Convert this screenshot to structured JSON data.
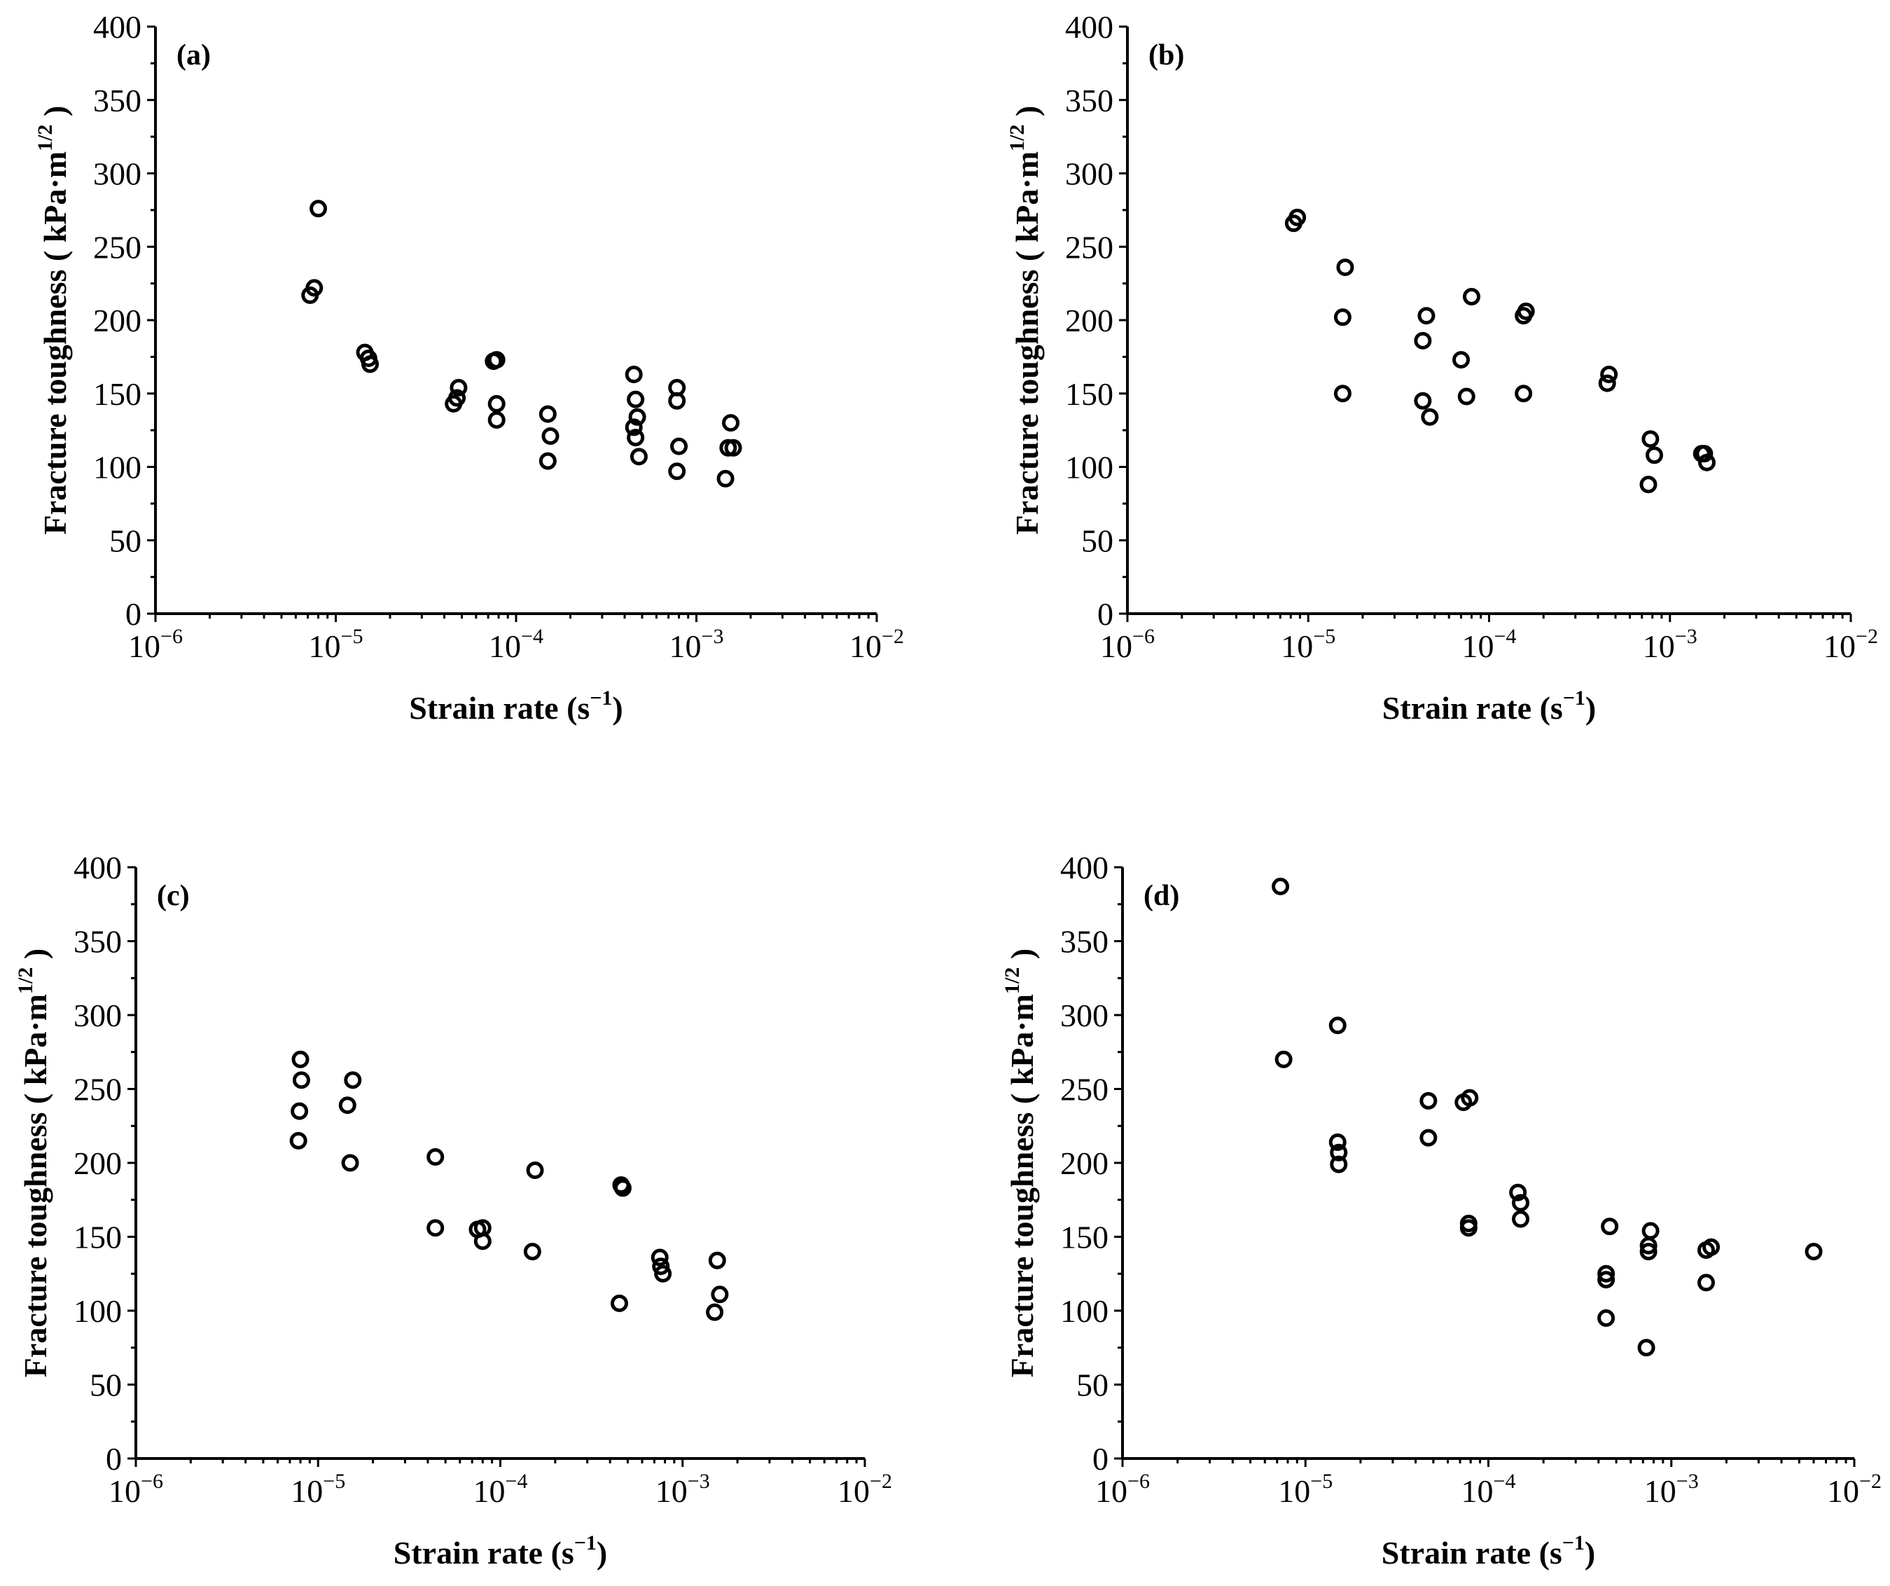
{
  "chart_data": [
    {
      "type": "scatter",
      "panel_label": "(a)",
      "xlabel": "Strain rate (s",
      "xlabel_exp": "−1",
      "xlabel_close": ")",
      "ylabel": "Fracture toughness ( kPa·m",
      "ylabel_exp": "1/2",
      "ylabel_close": " )",
      "x_scale": "log",
      "xlim": [
        1e-06,
        0.01
      ],
      "ylim": [
        0,
        400
      ],
      "x_ticks": [
        {
          "base": "10",
          "exp": "−6"
        },
        {
          "base": "10",
          "exp": "−5"
        },
        {
          "base": "10",
          "exp": "−4"
        },
        {
          "base": "10",
          "exp": "−3"
        },
        {
          "base": "10",
          "exp": "−2"
        }
      ],
      "y_ticks": [
        "0",
        "50",
        "100",
        "150",
        "200",
        "250",
        "300",
        "350",
        "400"
      ],
      "points": [
        [
          7.2e-06,
          217
        ],
        [
          7.6e-06,
          222
        ],
        [
          8e-06,
          276
        ],
        [
          1.45e-05,
          178
        ],
        [
          1.52e-05,
          174
        ],
        [
          1.55e-05,
          170
        ],
        [
          4.5e-05,
          143
        ],
        [
          4.7e-05,
          147
        ],
        [
          4.8e-05,
          154
        ],
        [
          7.5e-05,
          172
        ],
        [
          7.8e-05,
          173
        ],
        [
          7.8e-05,
          132
        ],
        [
          7.8e-05,
          143
        ],
        [
          0.00015,
          136
        ],
        [
          0.000155,
          121
        ],
        [
          0.00015,
          104
        ],
        [
          0.00045,
          163
        ],
        [
          0.00046,
          146
        ],
        [
          0.00047,
          134
        ],
        [
          0.00045,
          127
        ],
        [
          0.00046,
          120
        ],
        [
          0.00048,
          107
        ],
        [
          0.00078,
          154
        ],
        [
          0.00078,
          145
        ],
        [
          0.0008,
          114
        ],
        [
          0.00078,
          97
        ],
        [
          0.00155,
          130
        ],
        [
          0.0015,
          113
        ],
        [
          0.0016,
          113
        ],
        [
          0.00145,
          92
        ]
      ]
    },
    {
      "type": "scatter",
      "panel_label": "(b)",
      "xlabel": "Strain rate (s",
      "xlabel_exp": "−1",
      "xlabel_close": ")",
      "ylabel": "Fracture toughness ( kPa·m",
      "ylabel_exp": "1/2",
      "ylabel_close": " )",
      "x_scale": "log",
      "xlim": [
        1e-06,
        0.01
      ],
      "ylim": [
        0,
        400
      ],
      "x_ticks": [
        {
          "base": "10",
          "exp": "−6"
        },
        {
          "base": "10",
          "exp": "−5"
        },
        {
          "base": "10",
          "exp": "−4"
        },
        {
          "base": "10",
          "exp": "−3"
        },
        {
          "base": "10",
          "exp": "−2"
        }
      ],
      "y_ticks": [
        "0",
        "50",
        "100",
        "150",
        "200",
        "250",
        "300",
        "350",
        "400"
      ],
      "points": [
        [
          8.3e-06,
          266
        ],
        [
          8.7e-06,
          270
        ],
        [
          1.6e-05,
          236
        ],
        [
          1.55e-05,
          202
        ],
        [
          1.55e-05,
          150
        ],
        [
          4.3e-05,
          186
        ],
        [
          4.5e-05,
          203
        ],
        [
          4.3e-05,
          145
        ],
        [
          4.7e-05,
          134
        ],
        [
          7e-05,
          173
        ],
        [
          8e-05,
          216
        ],
        [
          7.5e-05,
          148
        ],
        [
          0.000155,
          203
        ],
        [
          0.00016,
          206
        ],
        [
          0.000155,
          150
        ],
        [
          0.00046,
          163
        ],
        [
          0.00045,
          157
        ],
        [
          0.00078,
          119
        ],
        [
          0.00082,
          108
        ],
        [
          0.00076,
          88
        ],
        [
          0.0015,
          109
        ],
        [
          0.00155,
          109
        ],
        [
          0.0016,
          103
        ]
      ]
    },
    {
      "type": "scatter",
      "panel_label": "(c)",
      "xlabel": "Strain rate (s",
      "xlabel_exp": "−1",
      "xlabel_close": ")",
      "ylabel": "Fracture toughness ( kPa·m",
      "ylabel_exp": "1/2",
      "ylabel_close": " )",
      "x_scale": "log",
      "xlim": [
        1e-06,
        0.01
      ],
      "ylim": [
        0,
        400
      ],
      "x_ticks": [
        {
          "base": "10",
          "exp": "−6"
        },
        {
          "base": "10",
          "exp": "−5"
        },
        {
          "base": "10",
          "exp": "−4"
        },
        {
          "base": "10",
          "exp": "−3"
        },
        {
          "base": "10",
          "exp": "−2"
        }
      ],
      "y_ticks": [
        "0",
        "50",
        "100",
        "150",
        "200",
        "250",
        "300",
        "350",
        "400"
      ],
      "points": [
        [
          8e-06,
          270
        ],
        [
          8.1e-06,
          256
        ],
        [
          7.9e-06,
          235
        ],
        [
          7.8e-06,
          215
        ],
        [
          1.55e-05,
          256
        ],
        [
          1.45e-05,
          239
        ],
        [
          1.5e-05,
          200
        ],
        [
          4.4e-05,
          204
        ],
        [
          4.4e-05,
          156
        ],
        [
          7.5e-05,
          155
        ],
        [
          8e-05,
          156
        ],
        [
          8e-05,
          147
        ],
        [
          0.000155,
          195
        ],
        [
          0.00015,
          140
        ],
        [
          0.00046,
          185
        ],
        [
          0.00047,
          183
        ],
        [
          0.00045,
          105
        ],
        [
          0.00075,
          136
        ],
        [
          0.00076,
          130
        ],
        [
          0.00078,
          125
        ],
        [
          0.00155,
          134
        ],
        [
          0.0016,
          111
        ],
        [
          0.0015,
          99
        ]
      ]
    },
    {
      "type": "scatter",
      "panel_label": "(d)",
      "xlabel": "Strain rate (s",
      "xlabel_exp": "−1",
      "xlabel_close": ")",
      "ylabel": "Fracture toughness ( kPa·m",
      "ylabel_exp": "1/2",
      "ylabel_close": " )",
      "x_scale": "log",
      "xlim": [
        1e-06,
        0.01
      ],
      "ylim": [
        0,
        400
      ],
      "x_ticks": [
        {
          "base": "10",
          "exp": "−6"
        },
        {
          "base": "10",
          "exp": "−5"
        },
        {
          "base": "10",
          "exp": "−4"
        },
        {
          "base": "10",
          "exp": "−3"
        },
        {
          "base": "10",
          "exp": "−2"
        }
      ],
      "y_ticks": [
        "0",
        "50",
        "100",
        "150",
        "200",
        "250",
        "300",
        "350",
        "400"
      ],
      "points": [
        [
          7.3e-06,
          387
        ],
        [
          7.6e-06,
          270
        ],
        [
          1.5e-05,
          293
        ],
        [
          1.5e-05,
          214
        ],
        [
          1.52e-05,
          207
        ],
        [
          1.52e-05,
          199
        ],
        [
          4.7e-05,
          242
        ],
        [
          4.7e-05,
          217
        ],
        [
          7.3e-05,
          241
        ],
        [
          7.9e-05,
          244
        ],
        [
          7.8e-05,
          159
        ],
        [
          7.8e-05,
          156
        ],
        [
          0.000145,
          180
        ],
        [
          0.00015,
          173
        ],
        [
          0.00015,
          162
        ],
        [
          0.00046,
          157
        ],
        [
          0.00044,
          125
        ],
        [
          0.00044,
          121
        ],
        [
          0.00044,
          95
        ],
        [
          0.00077,
          154
        ],
        [
          0.00075,
          144
        ],
        [
          0.00075,
          140
        ],
        [
          0.00073,
          75
        ],
        [
          0.00155,
          141
        ],
        [
          0.00165,
          143
        ],
        [
          0.00155,
          119
        ],
        [
          0.006,
          140
        ]
      ]
    }
  ]
}
